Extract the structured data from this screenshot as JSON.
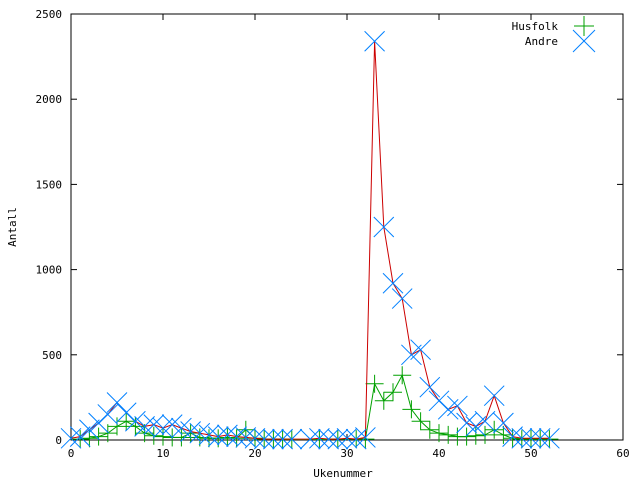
{
  "chart_data": {
    "type": "scatter",
    "xlabel": "Ukenummer",
    "ylabel": "Antall",
    "xlim": [
      0,
      60
    ],
    "ylim": [
      0,
      2500
    ],
    "xticks": [
      0,
      10,
      20,
      30,
      40,
      50,
      60
    ],
    "yticks": [
      0,
      500,
      1000,
      1500,
      2000,
      2500
    ],
    "grid": false,
    "legend_position": "top-right",
    "series": [
      {
        "name": "Husfolk",
        "marker": "plus",
        "color": "#00a000",
        "points": [
          [
            1,
            5
          ],
          [
            2,
            10
          ],
          [
            3,
            20
          ],
          [
            4,
            40
          ],
          [
            5,
            80
          ],
          [
            6,
            110
          ],
          [
            7,
            80
          ],
          [
            8,
            40
          ],
          [
            9,
            25
          ],
          [
            10,
            20
          ],
          [
            11,
            15
          ],
          [
            12,
            15
          ],
          [
            13,
            40
          ],
          [
            14,
            15
          ],
          [
            15,
            10
          ],
          [
            16,
            10
          ],
          [
            17,
            15
          ],
          [
            18,
            10
          ],
          [
            19,
            60
          ],
          [
            20,
            10
          ],
          [
            21,
            5
          ],
          [
            22,
            5
          ],
          [
            23,
            5
          ],
          [
            24,
            3
          ],
          [
            27,
            3
          ],
          [
            29,
            5
          ],
          [
            31,
            5
          ],
          [
            32,
            5
          ],
          [
            33,
            330
          ],
          [
            34,
            230
          ],
          [
            35,
            280
          ],
          [
            36,
            380
          ],
          [
            37,
            180
          ],
          [
            38,
            110
          ],
          [
            39,
            60
          ],
          [
            40,
            40
          ],
          [
            41,
            30
          ],
          [
            42,
            20
          ],
          [
            43,
            20
          ],
          [
            44,
            25
          ],
          [
            45,
            30
          ],
          [
            46,
            60
          ],
          [
            47,
            30
          ],
          [
            48,
            10
          ],
          [
            49,
            5
          ],
          [
            50,
            5
          ],
          [
            51,
            5
          ],
          [
            52,
            5
          ]
        ]
      },
      {
        "name": "Andre",
        "marker": "cross",
        "color": "#0080ff",
        "line_color": "#cc0000",
        "points": [
          [
            0,
            10
          ],
          [
            1,
            20
          ],
          [
            2,
            60
          ],
          [
            3,
            100
          ],
          [
            4,
            150
          ],
          [
            5,
            220
          ],
          [
            6,
            160
          ],
          [
            7,
            110
          ],
          [
            8,
            80
          ],
          [
            9,
            90
          ],
          [
            10,
            70
          ],
          [
            11,
            90
          ],
          [
            12,
            70
          ],
          [
            13,
            50
          ],
          [
            14,
            40
          ],
          [
            15,
            30
          ],
          [
            16,
            20
          ],
          [
            17,
            30
          ],
          [
            18,
            20
          ],
          [
            19,
            15
          ],
          [
            20,
            10
          ],
          [
            21,
            5
          ],
          [
            22,
            5
          ],
          [
            23,
            5
          ],
          [
            24,
            5
          ],
          [
            26,
            5
          ],
          [
            27,
            10
          ],
          [
            28,
            5
          ],
          [
            29,
            5
          ],
          [
            30,
            10
          ],
          [
            31,
            5
          ],
          [
            32,
            15
          ],
          [
            33,
            2340
          ],
          [
            34,
            1250
          ],
          [
            35,
            920
          ],
          [
            36,
            830
          ],
          [
            37,
            500
          ],
          [
            38,
            530
          ],
          [
            39,
            310
          ],
          [
            40,
            230
          ],
          [
            41,
            180
          ],
          [
            42,
            200
          ],
          [
            43,
            100
          ],
          [
            44,
            80
          ],
          [
            45,
            110
          ],
          [
            46,
            260
          ],
          [
            47,
            100
          ],
          [
            48,
            20
          ],
          [
            49,
            10
          ],
          [
            50,
            10
          ],
          [
            51,
            10
          ],
          [
            52,
            10
          ]
        ]
      }
    ]
  }
}
